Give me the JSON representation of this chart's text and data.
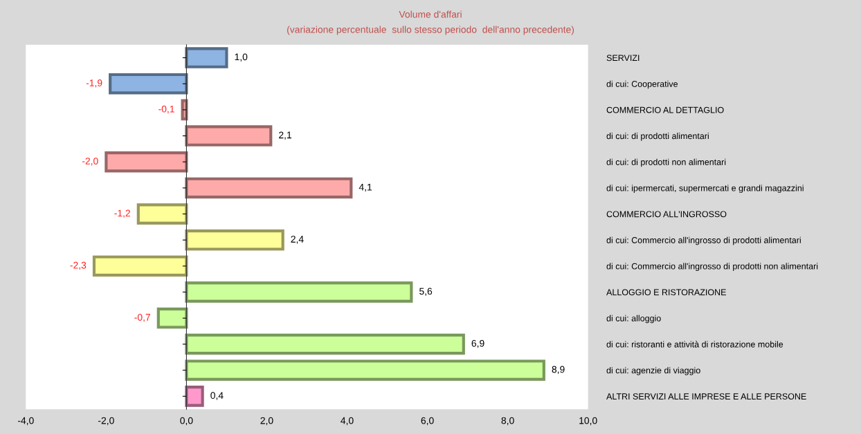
{
  "chart_data": {
    "type": "bar",
    "orientation": "horizontal",
    "title": "Volume d'affari",
    "subtitle": "(variazione percentuale  sullo stesso periodo  dell'anno precedente)",
    "categories": [
      "SERVIZI",
      "di cui: Cooperative",
      "COMMERCIO AL DETTAGLIO",
      "di cui: di prodotti alimentari",
      "di cui: di prodotti non alimentari",
      "di cui: ipermercati, supermercati e grandi magazzini",
      "COMMERCIO ALL'INGROSSO",
      "di cui: Commercio all'ingrosso di prodotti alimentari",
      "di cui: Commercio all'ingrosso di prodotti non alimentari",
      "ALLOGGIO E RISTORAZIONE",
      "di cui: alloggio",
      "di cui: ristoranti e attività di ristorazione mobile",
      "di cui: agenzie di viaggio",
      "ALTRI SERVIZI ALLE IMPRESE E ALLE PERSONE"
    ],
    "values": [
      1.0,
      -1.9,
      -0.1,
      2.1,
      -2.0,
      4.1,
      -1.2,
      2.4,
      -2.3,
      5.6,
      -0.7,
      6.9,
      8.9,
      0.4
    ],
    "value_labels": [
      "1,0",
      "-1,9",
      "-0,1",
      "2,1",
      "-2,0",
      "4,1",
      "-1,2",
      "2,4",
      "-2,3",
      "5,6",
      "-0,7",
      "6,9",
      "8,9",
      "0,4"
    ],
    "colors": [
      "#8db4e2",
      "#8db4e2",
      "#ffaaaa",
      "#ffaaaa",
      "#ffaaaa",
      "#ffaaaa",
      "#ffff99",
      "#ffff99",
      "#ffff99",
      "#ccff99",
      "#ccff99",
      "#ccff99",
      "#ccff99",
      "#ff99cc"
    ],
    "xlim": [
      -4,
      10
    ],
    "xticks": [
      {
        "value": -4,
        "label": "-4,0"
      },
      {
        "value": -2,
        "label": "-2,0"
      },
      {
        "value": 0,
        "label": "0,0"
      },
      {
        "value": 2,
        "label": "2,0"
      },
      {
        "value": 4,
        "label": "4,0"
      },
      {
        "value": 6,
        "label": "6,0"
      },
      {
        "value": 8,
        "label": "8,0"
      },
      {
        "value": 10,
        "label": "10,0"
      }
    ],
    "legend": false
  }
}
